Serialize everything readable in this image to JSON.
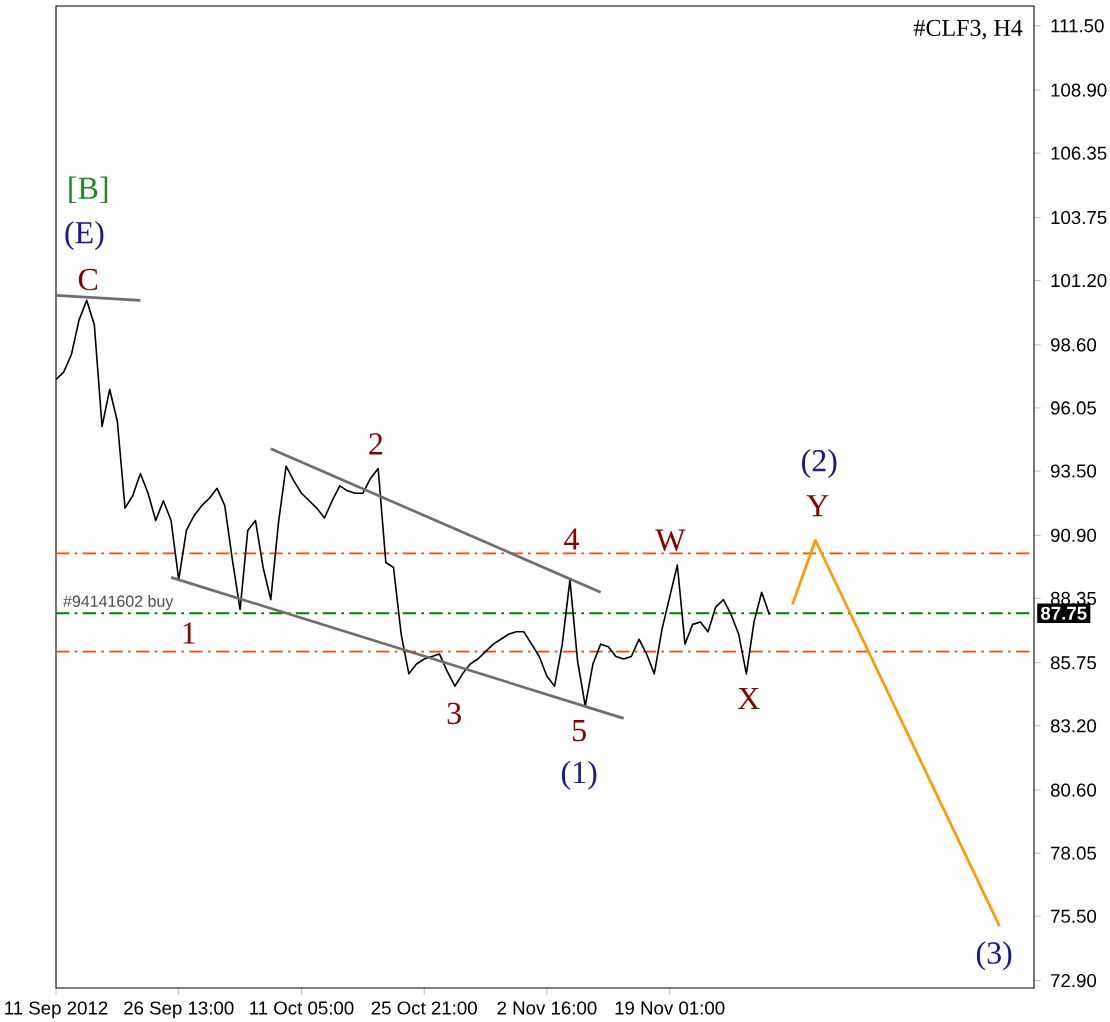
{
  "chart_data": {
    "type": "line",
    "title": "#CLF3, H4",
    "categories": [
      "11 Sep 2012",
      null,
      null,
      null,
      null,
      null,
      null,
      null,
      null,
      null,
      null,
      null,
      null,
      null,
      null,
      null,
      "26 Sep 13:00",
      null,
      null,
      null,
      null,
      null,
      null,
      null,
      null,
      null,
      null,
      null,
      null,
      null,
      null,
      null,
      "11 Oct 05:00",
      null,
      null,
      null,
      null,
      null,
      null,
      null,
      null,
      null,
      null,
      null,
      null,
      null,
      null,
      null,
      "25 Oct 21:00",
      null,
      null,
      null,
      null,
      null,
      null,
      null,
      null,
      null,
      null,
      null,
      null,
      null,
      null,
      null,
      "2 Nov 16:00",
      null,
      null,
      null,
      null,
      null,
      null,
      null,
      null,
      null,
      null,
      null,
      null,
      null,
      null,
      null,
      "19 Nov 01:00",
      null,
      null,
      null,
      null,
      null,
      null,
      null,
      null,
      null,
      null,
      null,
      null,
      null,
      null,
      null,
      null,
      null,
      null,
      null,
      null,
      null,
      null,
      null,
      null,
      null,
      null,
      null,
      null,
      null,
      null,
      null,
      null,
      null,
      null,
      null,
      null,
      null,
      null,
      null,
      null,
      null,
      null,
      null,
      null,
      null,
      null,
      null
    ],
    "ylim": [
      72.6,
      112.3
    ],
    "yticks": [
      {
        "value": 111.5,
        "label": "111.50"
      },
      {
        "value": 108.9,
        "label": "108.90"
      },
      106.35,
      103.75,
      {
        "value": 101.2,
        "label": "101.20"
      },
      {
        "value": 98.6,
        "label": "98.60"
      },
      96.05,
      {
        "value": 93.5,
        "label": "93.50"
      },
      {
        "value": 90.9,
        "label": "90.90"
      },
      88.35,
      85.75,
      {
        "value": 83.2,
        "label": "83.20"
      },
      {
        "value": 80.6,
        "label": "80.60"
      },
      78.05,
      {
        "value": 75.5,
        "label": "75.50"
      },
      {
        "value": 72.9,
        "label": "72.90"
      }
    ],
    "series": [
      {
        "color": "#000000",
        "values": [
          97.2,
          97.5,
          98.2,
          99.6,
          100.4,
          99.4,
          95.3,
          96.8,
          95.5,
          92.0,
          92.5,
          93.4,
          92.6,
          91.5,
          92.3,
          91.5,
          89.1,
          91.1,
          91.7,
          92.1,
          92.4,
          92.8,
          92.1,
          89.9,
          87.9,
          91.1,
          91.5,
          89.6,
          88.3,
          91.4,
          93.7,
          93.1,
          92.6,
          92.3,
          92.0,
          91.6,
          92.3,
          92.9,
          92.7,
          92.6,
          92.6,
          93.2,
          93.6,
          89.8,
          89.6,
          86.9,
          85.3,
          85.7,
          85.9,
          86.0,
          86.1,
          85.4,
          84.8,
          85.3,
          85.7,
          85.9,
          86.2,
          86.5,
          86.7,
          86.9,
          87.0,
          87.0,
          86.5,
          86.0,
          85.2,
          84.8,
          86.5,
          89.1,
          85.8,
          84.0,
          85.7,
          86.5,
          86.4,
          86.0,
          85.9,
          86.0,
          86.7,
          86.1,
          85.3,
          87.1,
          88.4,
          89.7,
          86.5,
          87.3,
          87.4,
          87.0,
          88.0,
          88.3,
          87.7,
          86.9,
          85.3,
          87.4,
          88.6,
          87.7,
          null,
          null,
          null,
          null,
          null,
          null,
          null,
          null,
          null,
          null,
          null,
          null,
          null,
          null,
          null,
          null,
          null,
          null,
          null,
          null,
          null,
          null,
          null,
          null,
          null,
          null,
          null,
          null,
          null,
          null,
          null,
          null,
          null,
          null
        ]
      },
      {
        "color": "#6e6e6e",
        "values": [
          100.6,
          null,
          null,
          null,
          null,
          null,
          null,
          null,
          null,
          null,
          null,
          100.4,
          null,
          null,
          null,
          null,
          null,
          null,
          null,
          null,
          null,
          null,
          null,
          null,
          null,
          null,
          null,
          null,
          null,
          null,
          null,
          null,
          null,
          null,
          null,
          null,
          null,
          null,
          null,
          null,
          null,
          null,
          null,
          null,
          null,
          null,
          null,
          null,
          null,
          null,
          null,
          null,
          null,
          null,
          null,
          null,
          null,
          null,
          null,
          null,
          null,
          null,
          null,
          null,
          null,
          null,
          null,
          null,
          null,
          null,
          null,
          null,
          null,
          null,
          null,
          null,
          null,
          null,
          null,
          null,
          null,
          null,
          null,
          null,
          null,
          null,
          null,
          null,
          null,
          null,
          null,
          null,
          null,
          null,
          null,
          null,
          null,
          null,
          null,
          null,
          null,
          null,
          null,
          null,
          null,
          null,
          null,
          null,
          null,
          null,
          null,
          null,
          null,
          null,
          null,
          null,
          null,
          null,
          null,
          null,
          null,
          null,
          null,
          null,
          null,
          null,
          null,
          null
        ]
      },
      {
        "color": "#6e6e6e",
        "values": [
          null,
          null,
          null,
          null,
          null,
          null,
          null,
          null,
          null,
          null,
          null,
          null,
          null,
          null,
          null,
          null,
          null,
          null,
          null,
          null,
          null,
          null,
          null,
          null,
          null,
          null,
          null,
          null,
          94.4,
          null,
          null,
          null,
          null,
          null,
          null,
          null,
          null,
          null,
          null,
          null,
          null,
          null,
          null,
          null,
          null,
          null,
          null,
          null,
          null,
          null,
          null,
          null,
          null,
          null,
          null,
          null,
          null,
          null,
          null,
          null,
          null,
          null,
          null,
          null,
          null,
          null,
          null,
          null,
          null,
          null,
          null,
          88.6,
          null,
          null,
          null,
          null,
          null,
          null,
          null,
          null,
          null,
          null,
          null,
          null,
          null,
          null,
          null,
          null,
          null,
          null,
          null,
          null,
          null,
          null,
          null,
          null,
          null,
          null,
          null,
          null,
          null,
          null,
          null,
          null,
          null,
          null,
          null,
          null,
          null,
          null,
          null,
          null,
          null,
          null,
          null,
          null,
          null,
          null,
          null,
          null,
          null,
          null,
          null,
          null,
          null,
          null,
          null,
          null
        ]
      },
      {
        "color": "#6e6e6e",
        "values": [
          null,
          null,
          null,
          null,
          null,
          null,
          null,
          null,
          null,
          null,
          null,
          null,
          null,
          null,
          null,
          89.2,
          null,
          null,
          null,
          null,
          null,
          null,
          null,
          null,
          null,
          null,
          null,
          null,
          null,
          null,
          null,
          null,
          null,
          null,
          null,
          null,
          null,
          null,
          null,
          null,
          null,
          null,
          null,
          null,
          null,
          null,
          null,
          null,
          null,
          null,
          null,
          null,
          null,
          null,
          null,
          null,
          null,
          null,
          null,
          null,
          null,
          null,
          null,
          null,
          null,
          null,
          null,
          null,
          null,
          null,
          null,
          null,
          null,
          null,
          83.5,
          null,
          null,
          null,
          null,
          null,
          null,
          null,
          null,
          null,
          null,
          null,
          null,
          null,
          null,
          null,
          null,
          null,
          null,
          null,
          null,
          null,
          null,
          null,
          null,
          null,
          null,
          null,
          null,
          null,
          null,
          null,
          null,
          null,
          null,
          null,
          null,
          null,
          null,
          null,
          null,
          null,
          null,
          null,
          null,
          null,
          null,
          null,
          null,
          null,
          null,
          null,
          null,
          null
        ]
      },
      {
        "color": "#ff9900",
        "values": [
          null,
          null,
          null,
          null,
          null,
          null,
          null,
          null,
          null,
          null,
          null,
          null,
          null,
          null,
          null,
          null,
          null,
          null,
          null,
          null,
          null,
          null,
          null,
          null,
          null,
          null,
          null,
          null,
          null,
          null,
          null,
          null,
          null,
          null,
          null,
          null,
          null,
          null,
          null,
          null,
          null,
          null,
          null,
          null,
          null,
          null,
          null,
          null,
          null,
          null,
          null,
          null,
          null,
          null,
          null,
          null,
          null,
          null,
          null,
          null,
          null,
          null,
          null,
          null,
          null,
          null,
          null,
          null,
          null,
          null,
          null,
          null,
          null,
          null,
          null,
          null,
          null,
          null,
          null,
          null,
          null,
          null,
          null,
          null,
          null,
          null,
          null,
          null,
          null,
          null,
          null,
          null,
          null,
          null,
          null,
          null,
          88.1,
          null,
          null,
          90.7,
          null,
          null,
          null,
          null,
          null,
          null,
          null,
          null,
          null,
          null,
          null,
          null,
          null,
          null,
          null,
          null,
          null,
          null,
          null,
          null,
          null,
          null,
          null,
          75.1,
          null,
          null,
          null,
          null
        ]
      }
    ],
    "ref_lines": [
      {
        "axis": "y",
        "value": 90.17,
        "color": "#ff4500",
        "line_style": "dashed"
      },
      {
        "axis": "y",
        "value": 87.75,
        "color": "#008000",
        "line_style": "dashed",
        "label": "#94141602 buy"
      },
      {
        "axis": "y",
        "value": 86.2,
        "color": "#ff4500",
        "line_style": "dashed"
      }
    ],
    "annotations": [
      "[B]",
      "(E)",
      "C",
      "1",
      "2",
      "3",
      "4",
      "5",
      "(1)",
      "W",
      "X",
      "(2)",
      "Y",
      "(3)",
      {
        "text": "87.75",
        "y": 87.75
      }
    ]
  }
}
